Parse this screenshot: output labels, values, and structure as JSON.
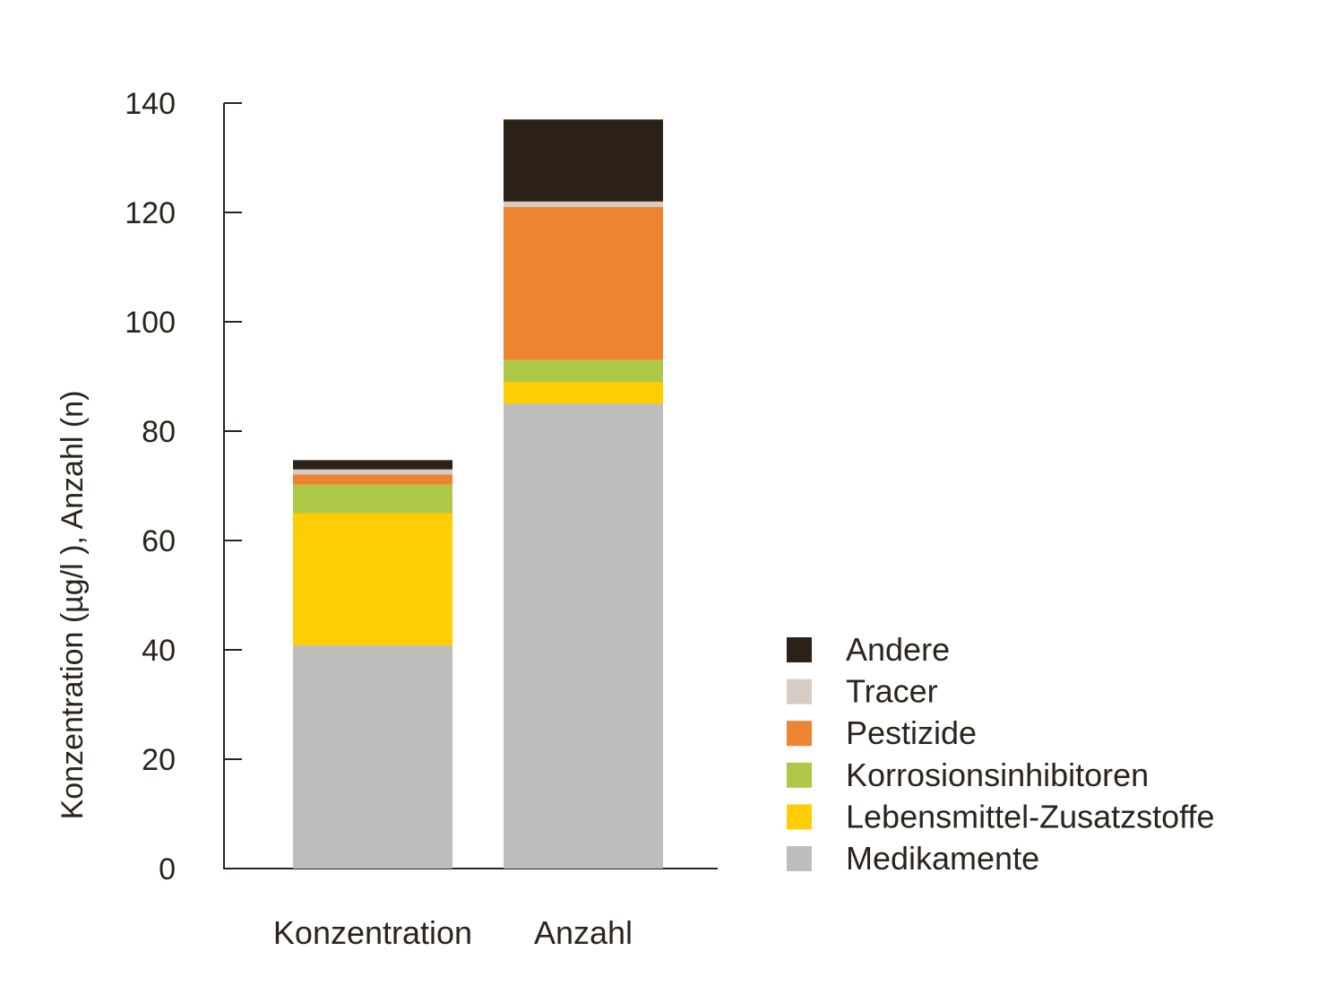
{
  "chart_data": {
    "type": "bar",
    "stacked": true,
    "title": "",
    "xlabel": "",
    "ylabel": "Konzentration (µg/l ), Anzahl (n)",
    "ylim": [
      0,
      140
    ],
    "yticks": [
      0,
      20,
      40,
      60,
      80,
      100,
      120,
      140
    ],
    "grid": false,
    "legend_position": "right",
    "categories": [
      "Konzentration",
      "Anzahl"
    ],
    "series": [
      {
        "name": "Medikamente",
        "color": "#bdbdbc",
        "values": [
          40.8,
          85
        ]
      },
      {
        "name": "Lebensmittel-Zusatzstoffe",
        "color": "#fecd04",
        "values": [
          24.2,
          4
        ]
      },
      {
        "name": "Korrosionsinhibitoren",
        "color": "#adc947",
        "values": [
          5.2,
          4
        ]
      },
      {
        "name": "Pestizide",
        "color": "#ed8430",
        "values": [
          1.9,
          28
        ]
      },
      {
        "name": "Tracer",
        "color": "#d5ccc6",
        "values": [
          0.9,
          1
        ]
      },
      {
        "name": "Andere",
        "color": "#2b2117",
        "values": [
          1.7,
          15
        ]
      }
    ]
  }
}
